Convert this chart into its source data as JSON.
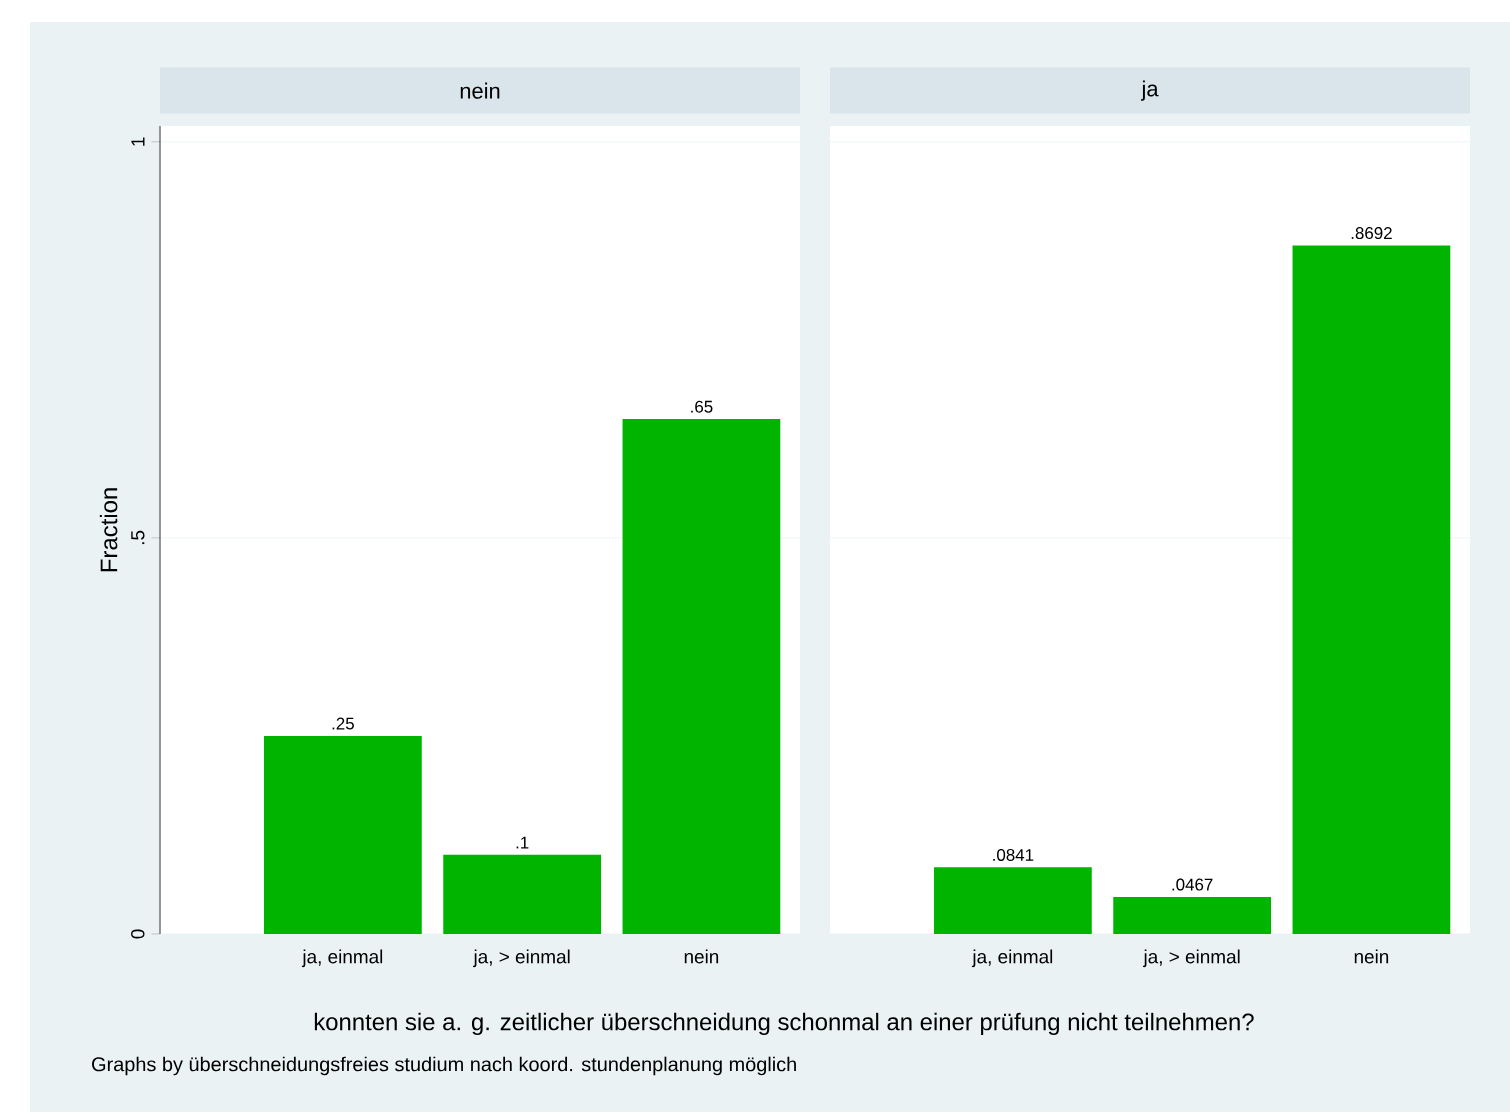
{
  "chart_data": [
    {
      "type": "bar",
      "title": "nein",
      "ylabel": "Fraction",
      "xlabel": "konnten sie a. g. zeitlicher überschneidung schonmal an einer prüfung nicht teilnehmen?",
      "annotations": [
        "Graphs by überschneidungsfreies studium nach koord. stundenplanung möglich"
      ],
      "categories": [
        "ja, einmal",
        "ja, > einmal",
        "nein"
      ],
      "values": [
        0.25,
        0.1,
        0.65
      ],
      "value_labels": [
        ".25",
        ".1",
        ".65"
      ],
      "color": "#00b400",
      "ylim": [
        0,
        1.02
      ],
      "yticks": [
        0,
        {
          "value": 0.5,
          "label": ".5"
        },
        1
      ],
      "grid": "y"
    },
    {
      "type": "bar",
      "title": "ja",
      "categories": [
        "ja, einmal",
        "ja, > einmal",
        "nein"
      ],
      "values": [
        0.0841,
        0.0467,
        0.8692
      ],
      "value_labels": [
        ".0841",
        ".0467",
        ".8692"
      ],
      "color": "#00b400",
      "ylim": [
        0,
        1.02
      ],
      "yticks": [
        {
          "value": 0,
          "label": null
        },
        {
          "value": 0.5,
          "label": null
        },
        {
          "value": 1,
          "label": null
        }
      ],
      "grid": "y",
      "tick_labels": "x"
    }
  ]
}
